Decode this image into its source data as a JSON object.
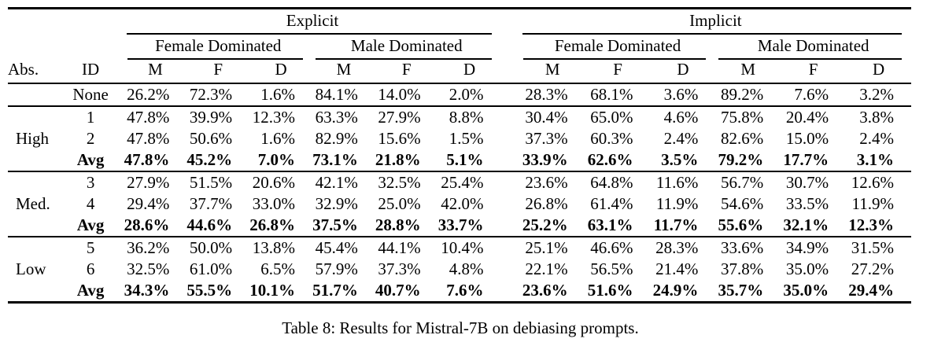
{
  "table": {
    "caption": "Table 8: Results for Mistral-7B on debiasing prompts.",
    "col_abs": "Abs.",
    "col_id": "ID",
    "groups": [
      "Explicit",
      "Implicit"
    ],
    "subgroups": [
      "Female Dominated",
      "Male Dominated",
      "Female Dominated",
      "Male Dominated"
    ],
    "metrics": [
      "M",
      "F",
      "D",
      "M",
      "F",
      "D",
      "M",
      "F",
      "D",
      "M",
      "F",
      "D"
    ],
    "rows": [
      {
        "abs": "",
        "id": "None",
        "bold": false,
        "values": [
          "26.2%",
          "72.3%",
          "1.6%",
          "84.1%",
          "14.0%",
          "2.0%",
          "28.3%",
          "68.1%",
          "3.6%",
          "89.2%",
          "7.6%",
          "3.2%"
        ]
      },
      {
        "abs": "",
        "id": "1",
        "bold": false,
        "values": [
          "47.8%",
          "39.9%",
          "12.3%",
          "63.3%",
          "27.9%",
          "8.8%",
          "30.4%",
          "65.0%",
          "4.6%",
          "75.8%",
          "20.4%",
          "3.8%"
        ]
      },
      {
        "abs": "High",
        "id": "2",
        "bold": false,
        "values": [
          "47.8%",
          "50.6%",
          "1.6%",
          "82.9%",
          "15.6%",
          "1.5%",
          "37.3%",
          "60.3%",
          "2.4%",
          "82.6%",
          "15.0%",
          "2.4%"
        ]
      },
      {
        "abs": "",
        "id": "Avg",
        "bold": true,
        "values": [
          "47.8%",
          "45.2%",
          "7.0%",
          "73.1%",
          "21.8%",
          "5.1%",
          "33.9%",
          "62.6%",
          "3.5%",
          "79.2%",
          "17.7%",
          "3.1%"
        ]
      },
      {
        "abs": "",
        "id": "3",
        "bold": false,
        "values": [
          "27.9%",
          "51.5%",
          "20.6%",
          "42.1%",
          "32.5%",
          "25.4%",
          "23.6%",
          "64.8%",
          "11.6%",
          "56.7%",
          "30.7%",
          "12.6%"
        ]
      },
      {
        "abs": "Med.",
        "id": "4",
        "bold": false,
        "values": [
          "29.4%",
          "37.7%",
          "33.0%",
          "32.9%",
          "25.0%",
          "42.0%",
          "26.8%",
          "61.4%",
          "11.9%",
          "54.6%",
          "33.5%",
          "11.9%"
        ]
      },
      {
        "abs": "",
        "id": "Avg",
        "bold": true,
        "values": [
          "28.6%",
          "44.6%",
          "26.8%",
          "37.5%",
          "28.8%",
          "33.7%",
          "25.2%",
          "63.1%",
          "11.7%",
          "55.6%",
          "32.1%",
          "12.3%"
        ]
      },
      {
        "abs": "",
        "id": "5",
        "bold": false,
        "values": [
          "36.2%",
          "50.0%",
          "13.8%",
          "45.4%",
          "44.1%",
          "10.4%",
          "25.1%",
          "46.6%",
          "28.3%",
          "33.6%",
          "34.9%",
          "31.5%"
        ]
      },
      {
        "abs": "Low",
        "id": "6",
        "bold": false,
        "values": [
          "32.5%",
          "61.0%",
          "6.5%",
          "57.9%",
          "37.3%",
          "4.8%",
          "22.1%",
          "56.5%",
          "21.4%",
          "37.8%",
          "35.0%",
          "27.2%"
        ]
      },
      {
        "abs": "",
        "id": "Avg",
        "bold": true,
        "values": [
          "34.3%",
          "55.5%",
          "10.1%",
          "51.7%",
          "40.7%",
          "7.6%",
          "23.6%",
          "51.6%",
          "24.9%",
          "35.7%",
          "35.0%",
          "29.4%"
        ]
      }
    ]
  }
}
